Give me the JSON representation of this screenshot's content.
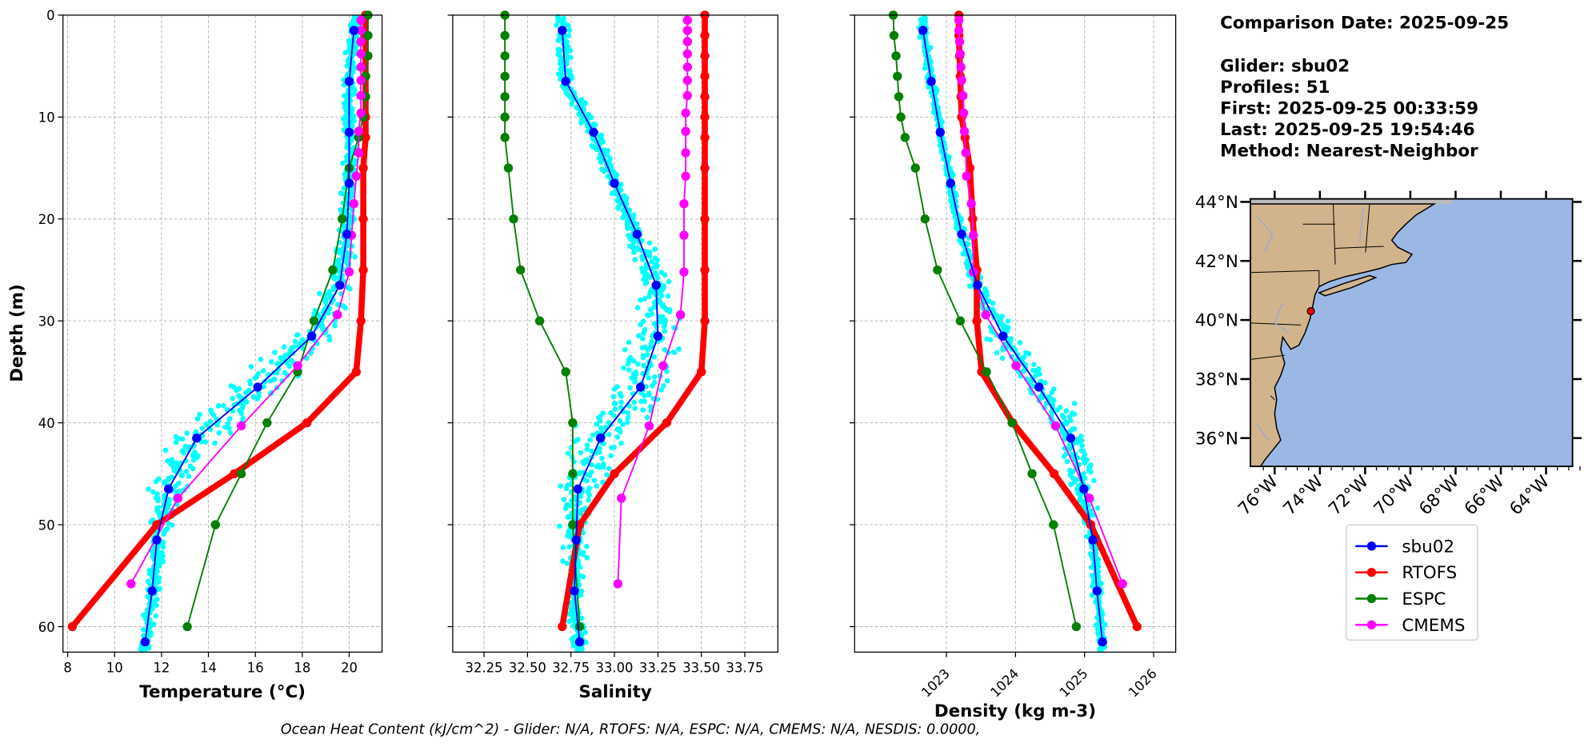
{
  "info": {
    "comparison_date": "Comparison Date: 2025-09-25",
    "glider": "Glider: sbu02",
    "profiles": "Profiles: 51",
    "first": "First: 2025-09-25 00:33:59",
    "last": "Last: 2025-09-25 19:54:46",
    "method": "Method: Nearest-Neighbor"
  },
  "footer": "Ocean Heat Content (kJ/cm^2) - Glider: N/A,  RTOFS: N/A,  ESPC: N/A,  CMEMS: N/A,  NESDIS: 0.0000,",
  "colors": {
    "sbu02": "#0000ff",
    "RTOFS": "#ff0000",
    "ESPC": "#008000",
    "CMEMS": "#ff00ff",
    "scatter": "#00ffff",
    "land": "#d2b48c",
    "ocean": "#9ab8e3"
  },
  "map": {
    "lat_ticks": [
      "44°N",
      "42°N",
      "40°N",
      "38°N",
      "36°N"
    ],
    "lon_ticks": [
      "76°W",
      "74°W",
      "72°W",
      "70°W",
      "68°W",
      "66°W",
      "64°W"
    ],
    "glider_position": {
      "lat": 40.3,
      "lon": -74.4
    }
  },
  "legend": [
    "sbu02",
    "RTOFS",
    "ESPC",
    "CMEMS"
  ],
  "chart_data": [
    {
      "type": "line",
      "xlabel": "Temperature (°C)",
      "ylabel": "Depth (m)",
      "xlim": [
        7.8,
        21.4
      ],
      "ylim": [
        62.5,
        0
      ],
      "xticks": [
        "8",
        "10",
        "12",
        "14",
        "16",
        "18",
        "20"
      ],
      "xtick_values": [
        8,
        10,
        12,
        14,
        16,
        18,
        20
      ],
      "yticks": [
        "0",
        "10",
        "20",
        "30",
        "40",
        "50",
        "60"
      ],
      "yticks_values": [
        0,
        10,
        20,
        30,
        40,
        50,
        60
      ],
      "grid": true,
      "series": [
        {
          "name": "sbu02",
          "depth": [
            1.5,
            6.5,
            11.5,
            16.5,
            21.5,
            26.5,
            31.5,
            36.5,
            41.5,
            46.5,
            51.5,
            56.5,
            61.5
          ],
          "values": [
            20.2,
            20.0,
            20.0,
            20.0,
            19.9,
            19.6,
            18.4,
            16.1,
            13.5,
            12.3,
            11.8,
            11.6,
            11.3
          ]
        },
        {
          "name": "RTOFS",
          "depth": [
            0,
            2,
            4,
            6,
            8,
            10,
            12,
            15,
            20,
            25,
            30,
            35,
            40,
            45,
            50,
            60
          ],
          "values": [
            20.7,
            20.7,
            20.7,
            20.7,
            20.7,
            20.7,
            20.7,
            20.6,
            20.6,
            20.6,
            20.5,
            20.3,
            18.2,
            15.1,
            11.8,
            8.2
          ]
        },
        {
          "name": "ESPC",
          "depth": [
            0,
            2,
            4,
            6,
            8,
            10,
            12,
            15,
            20,
            25,
            30,
            35,
            40,
            45,
            50,
            60
          ],
          "values": [
            20.8,
            20.8,
            20.8,
            20.7,
            20.7,
            20.6,
            20.4,
            20.0,
            19.7,
            19.3,
            18.5,
            17.8,
            16.5,
            15.4,
            14.3,
            13.1
          ]
        },
        {
          "name": "CMEMS",
          "depth": [
            0.5,
            1.5,
            2.6,
            3.8,
            5.1,
            6.4,
            7.9,
            9.6,
            11.4,
            13.5,
            15.8,
            18.5,
            21.6,
            25.2,
            29.4,
            34.4,
            40.3,
            47.4,
            55.8
          ],
          "values": [
            20.5,
            20.5,
            20.5,
            20.5,
            20.5,
            20.5,
            20.5,
            20.5,
            20.4,
            20.4,
            20.3,
            20.2,
            20.1,
            20.0,
            19.5,
            17.8,
            15.4,
            12.7,
            10.7
          ]
        }
      ]
    },
    {
      "type": "line",
      "xlabel": "Salinity",
      "xlim": [
        32.07,
        33.94
      ],
      "ylim": [
        62.5,
        0
      ],
      "xticks": [
        "32.25",
        "32.50",
        "32.75",
        "33.00",
        "33.25",
        "33.50",
        "33.75"
      ],
      "xtick_values": [
        32.25,
        32.5,
        32.75,
        33.0,
        33.25,
        33.5,
        33.75
      ],
      "yticks_values": [
        0,
        10,
        20,
        30,
        40,
        50,
        60
      ],
      "grid": true,
      "series": [
        {
          "name": "sbu02",
          "depth": [
            1.5,
            6.5,
            11.5,
            16.5,
            21.5,
            26.5,
            31.5,
            36.5,
            41.5,
            46.5,
            51.5,
            56.5,
            61.5
          ],
          "values": [
            32.7,
            32.72,
            32.88,
            33.0,
            33.13,
            33.24,
            33.25,
            33.15,
            32.92,
            32.79,
            32.78,
            32.77,
            32.8
          ]
        },
        {
          "name": "RTOFS",
          "depth": [
            0,
            2,
            4,
            6,
            8,
            10,
            12,
            15,
            20,
            25,
            30,
            35,
            40,
            45,
            50,
            60
          ],
          "values": [
            33.52,
            33.52,
            33.52,
            33.52,
            33.52,
            33.52,
            33.52,
            33.52,
            33.52,
            33.52,
            33.52,
            33.5,
            33.3,
            33.0,
            32.8,
            32.7
          ]
        },
        {
          "name": "ESPC",
          "depth": [
            0,
            2,
            4,
            6,
            8,
            10,
            12,
            15,
            20,
            25,
            30,
            35,
            40,
            45,
            50,
            60
          ],
          "values": [
            32.37,
            32.37,
            32.37,
            32.37,
            32.37,
            32.37,
            32.37,
            32.39,
            32.42,
            32.46,
            32.57,
            32.72,
            32.76,
            32.76,
            32.76,
            32.8
          ]
        },
        {
          "name": "CMEMS",
          "depth": [
            0.5,
            1.5,
            2.6,
            3.8,
            5.1,
            6.4,
            7.9,
            9.6,
            11.4,
            13.5,
            15.8,
            18.5,
            21.6,
            25.2,
            29.4,
            34.4,
            40.3,
            47.4,
            55.8
          ],
          "values": [
            33.42,
            33.42,
            33.42,
            33.42,
            33.42,
            33.42,
            33.42,
            33.41,
            33.41,
            33.41,
            33.41,
            33.4,
            33.4,
            33.4,
            33.38,
            33.28,
            33.2,
            33.04,
            33.02
          ]
        }
      ]
    },
    {
      "type": "line",
      "xlabel": "Density (kg m-3)",
      "xlim": [
        1021.67,
        1026.32
      ],
      "ylim": [
        62.5,
        0
      ],
      "xticks": [
        "1023",
        "1024",
        "1025",
        "1026"
      ],
      "xtick_values": [
        1023,
        1024,
        1025,
        1026
      ],
      "yticks_values": [
        0,
        10,
        20,
        30,
        40,
        50,
        60
      ],
      "grid": true,
      "series": [
        {
          "name": "sbu02",
          "depth": [
            1.5,
            6.5,
            11.5,
            16.5,
            21.5,
            26.5,
            31.5,
            36.5,
            41.5,
            46.5,
            51.5,
            56.5,
            61.5
          ],
          "values": [
            1022.66,
            1022.78,
            1022.91,
            1023.06,
            1023.22,
            1023.45,
            1023.82,
            1024.34,
            1024.8,
            1024.99,
            1025.12,
            1025.18,
            1025.26
          ]
        },
        {
          "name": "RTOFS",
          "depth": [
            0,
            2,
            4,
            6,
            8,
            10,
            12,
            15,
            20,
            25,
            30,
            35,
            40,
            45,
            50,
            60
          ],
          "values": [
            1023.18,
            1023.18,
            1023.19,
            1023.2,
            1023.21,
            1023.22,
            1023.27,
            1023.34,
            1023.38,
            1023.44,
            1023.44,
            1023.51,
            1023.96,
            1024.56,
            1025.09,
            1025.76
          ]
        },
        {
          "name": "ESPC",
          "depth": [
            0,
            2,
            4,
            6,
            8,
            10,
            12,
            15,
            20,
            25,
            30,
            35,
            40,
            45,
            50,
            60
          ],
          "values": [
            1022.23,
            1022.24,
            1022.27,
            1022.29,
            1022.31,
            1022.34,
            1022.4,
            1022.55,
            1022.69,
            1022.87,
            1023.2,
            1023.58,
            1023.95,
            1024.24,
            1024.55,
            1024.88
          ]
        },
        {
          "name": "CMEMS",
          "depth": [
            0.5,
            1.5,
            2.6,
            3.8,
            5.1,
            6.4,
            7.9,
            9.6,
            11.4,
            13.5,
            15.8,
            18.5,
            21.6,
            25.2,
            29.4,
            34.4,
            40.3,
            47.4,
            55.8
          ],
          "values": [
            1023.18,
            1023.18,
            1023.19,
            1023.2,
            1023.21,
            1023.22,
            1023.24,
            1023.25,
            1023.26,
            1023.28,
            1023.29,
            1023.36,
            1023.39,
            1023.39,
            1023.57,
            1024.01,
            1024.58,
            1025.07,
            1025.55
          ]
        }
      ]
    }
  ]
}
